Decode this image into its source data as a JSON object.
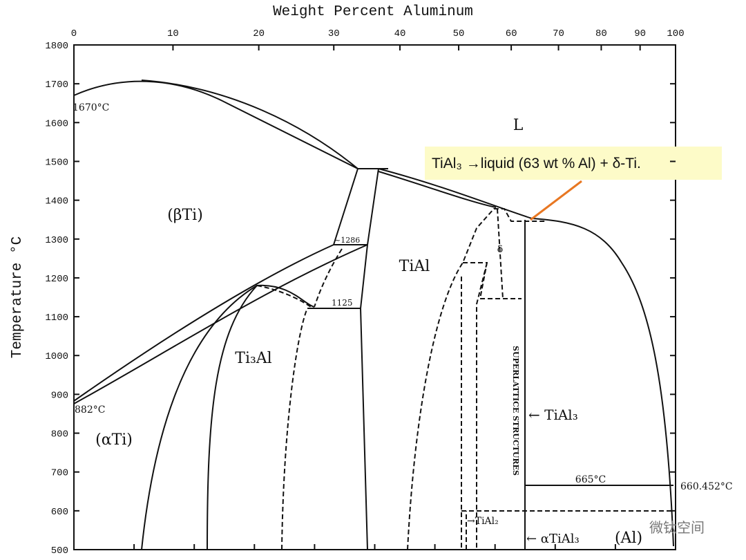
{
  "axes": {
    "x_label": "Weight Percent Aluminum",
    "xlim": [
      0,
      100
    ],
    "xticks": [
      0,
      10,
      20,
      30,
      40,
      50,
      60,
      70,
      80,
      90,
      100
    ],
    "y_label": "Temperature °C",
    "ylim": [
      500,
      1800
    ],
    "yticks": [
      500,
      600,
      700,
      800,
      900,
      1000,
      1100,
      1200,
      1300,
      1400,
      1500,
      1600,
      1700,
      1800
    ]
  },
  "regions": {
    "liquid": "L",
    "beta": "(βTi)",
    "alpha": "(αTi)",
    "ti3al": "Ti₃Al",
    "tial": "TiAl",
    "delta": "δ",
    "al": "(Al)"
  },
  "labels": {
    "t1670": "1670°C",
    "t882": "882°C",
    "t1286": "~1286",
    "t1125": "1125",
    "t665": "665°C",
    "t660": "660.452°C",
    "superlattice": "SUPERLATTICE STRUCTURES",
    "tial3": "← TiAl₃",
    "tial2": "→TiAl₂",
    "atial3": "← αTiAl₃"
  },
  "annotation": "TiAl₃ →liquid (63 wt % Al) + δ-Ti.",
  "watermark": "微钛空间"
}
